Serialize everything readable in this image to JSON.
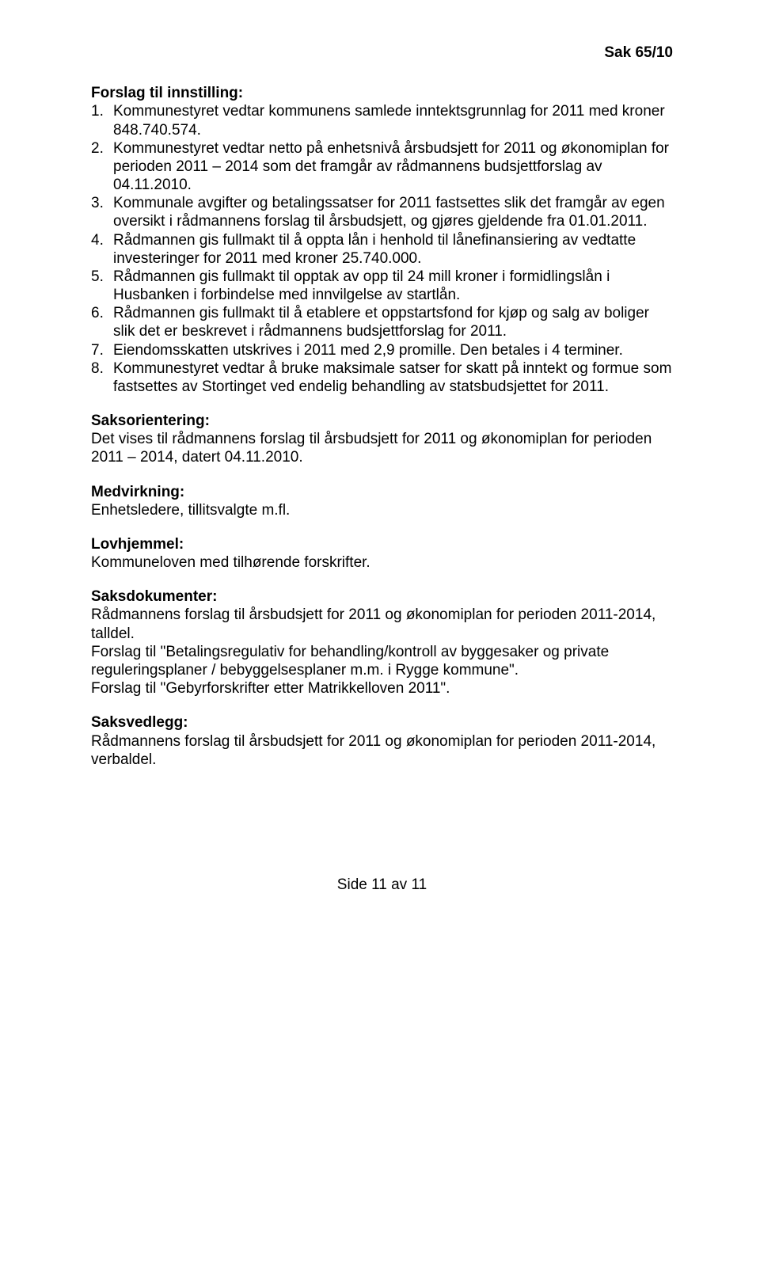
{
  "header": {
    "case_ref": "Sak 65/10"
  },
  "forslag": {
    "heading": "Forslag til innstilling:",
    "items": [
      "Kommunestyret vedtar kommunens samlede inntektsgrunnlag for 2011 med kroner 848.740.574.",
      "Kommunestyret vedtar netto på enhetsnivå årsbudsjett for 2011 og økonomiplan for perioden 2011 – 2014 som det framgår av rådmannens budsjettforslag av 04.11.2010.",
      "Kommunale avgifter og betalingssatser for 2011 fastsettes slik det framgår av egen oversikt i rådmannens forslag til årsbudsjett, og gjøres gjeldende fra 01.01.2011.",
      "Rådmannen gis fullmakt til å oppta lån i henhold til lånefinansiering av vedtatte investeringer for 2011 med kroner 25.740.000.",
      "Rådmannen gis fullmakt til opptak av opp til 24 mill kroner i formidlingslån i Husbanken i forbindelse med innvilgelse av startlån.",
      "Rådmannen gis fullmakt til å etablere et oppstartsfond for kjøp og salg av boliger slik det er beskrevet i rådmannens budsjettforslag for 2011.",
      "Eiendomsskatten utskrives i 2011 med 2,9 promille. Den betales i 4 terminer.",
      "Kommunestyret vedtar å bruke maksimale satser for skatt på inntekt og formue som fastsettes av Stortinget ved endelig behandling av statsbudsjettet for 2011."
    ]
  },
  "saksorientering": {
    "heading": "Saksorientering:",
    "body": "Det vises til rådmannens forslag til årsbudsjett for 2011 og økonomiplan for perioden 2011 – 2014, datert 04.11.2010."
  },
  "medvirkning": {
    "heading": "Medvirkning:",
    "body": "Enhetsledere, tillitsvalgte m.fl."
  },
  "lovhjemmel": {
    "heading": "Lovhjemmel:",
    "body": "Kommuneloven med tilhørende forskrifter."
  },
  "saksdokumenter": {
    "heading": "Saksdokumenter:",
    "lines": [
      "Rådmannens forslag til årsbudsjett for 2011 og økonomiplan for perioden 2011-2014, talldel.",
      "Forslag til \"Betalingsregulativ for behandling/kontroll av byggesaker og private reguleringsplaner / bebyggelsesplaner m.m. i Rygge kommune\".",
      "Forslag til \"Gebyrforskrifter etter Matrikkelloven 2011\"."
    ]
  },
  "saksvedlegg": {
    "heading": "Saksvedlegg:",
    "body": "Rådmannens forslag til årsbudsjett for 2011 og økonomiplan for perioden 2011-2014, verbaldel."
  },
  "footer": {
    "page": "Side 11 av 11"
  }
}
